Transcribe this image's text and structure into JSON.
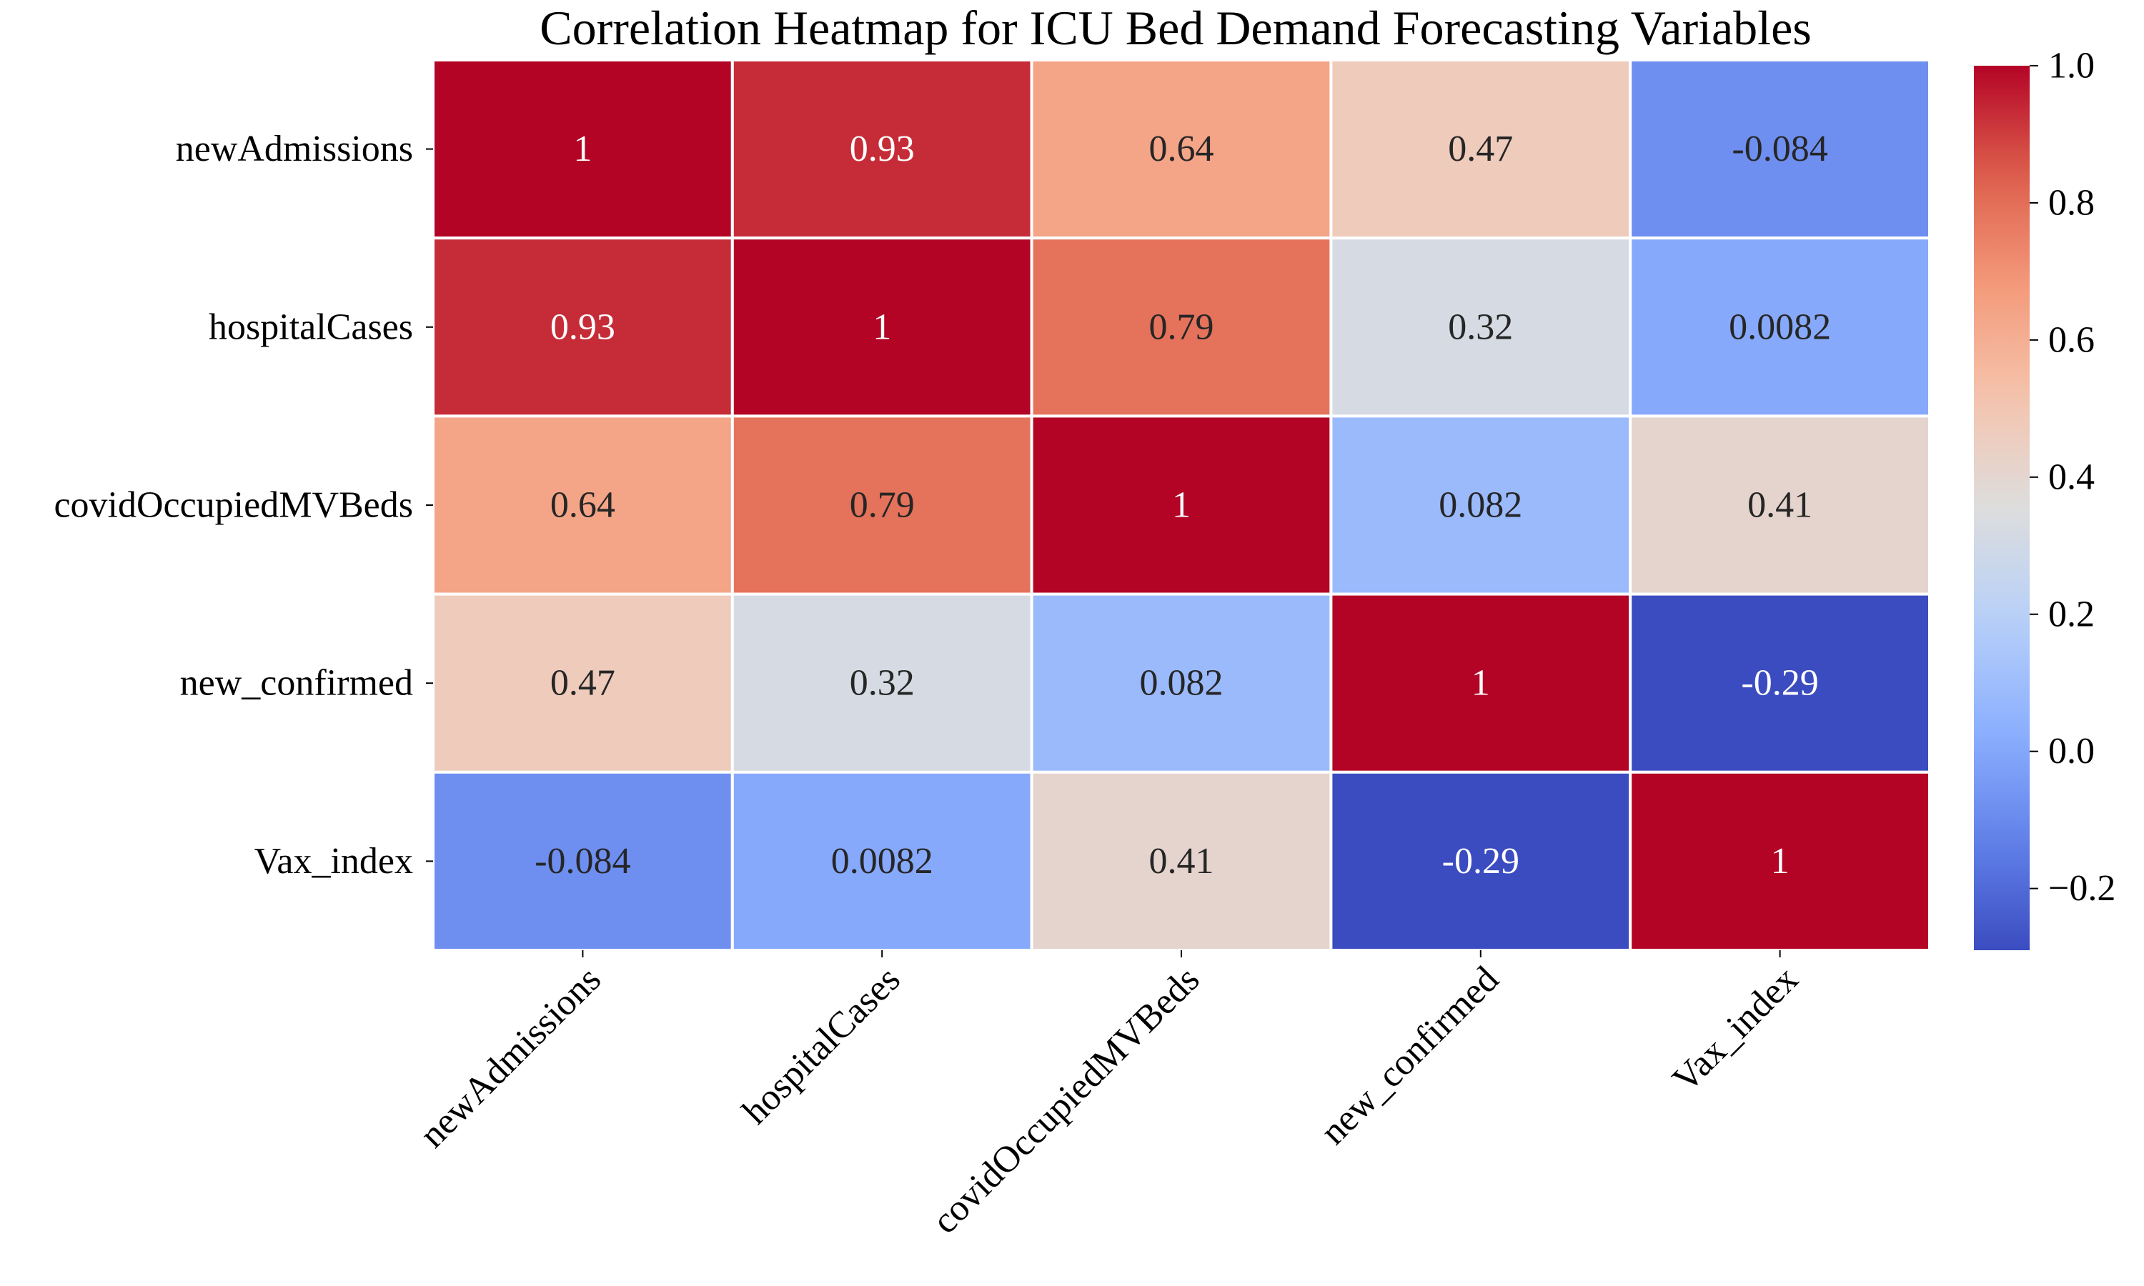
{
  "chart_data": {
    "type": "heatmap",
    "title": "Correlation Heatmap for ICU Bed Demand Forecasting Variables",
    "xlabel": "",
    "ylabel": "",
    "row_labels": [
      "newAdmissions",
      "hospitalCases",
      "covidOccupiedMVBeds",
      "new_confirmed",
      "Vax_index"
    ],
    "col_labels": [
      "newAdmissions",
      "hospitalCases",
      "covidOccupiedMVBeds",
      "new_confirmed",
      "Vax_index"
    ],
    "values": [
      [
        1,
        0.93,
        0.64,
        0.47,
        -0.084
      ],
      [
        0.93,
        1,
        0.79,
        0.32,
        0.0082
      ],
      [
        0.64,
        0.79,
        1,
        0.082,
        0.41
      ],
      [
        0.47,
        0.32,
        0.082,
        1,
        -0.29
      ],
      [
        -0.084,
        0.0082,
        0.41,
        -0.29,
        1
      ]
    ],
    "cell_labels": [
      [
        "1",
        "0.93",
        "0.64",
        "0.47",
        "-0.084"
      ],
      [
        "0.93",
        "1",
        "0.79",
        "0.32",
        "0.0082"
      ],
      [
        "0.64",
        "0.79",
        "1",
        "0.082",
        "0.41"
      ],
      [
        "0.47",
        "0.32",
        "0.082",
        "1",
        "-0.29"
      ],
      [
        "-0.084",
        "0.0082",
        "0.41",
        "-0.29",
        "1"
      ]
    ],
    "colormap": "coolwarm",
    "colorbar": {
      "vmin": -0.29,
      "vmax": 1.0,
      "ticks": [
        1.0,
        0.8,
        0.6,
        0.4,
        0.2,
        0.0,
        -0.2
      ],
      "tick_labels": [
        "1.0",
        "0.8",
        "0.6",
        "0.4",
        "0.2",
        "0.0",
        "−0.2"
      ]
    },
    "grid_color": "#ffffff",
    "annotations_on": true
  }
}
